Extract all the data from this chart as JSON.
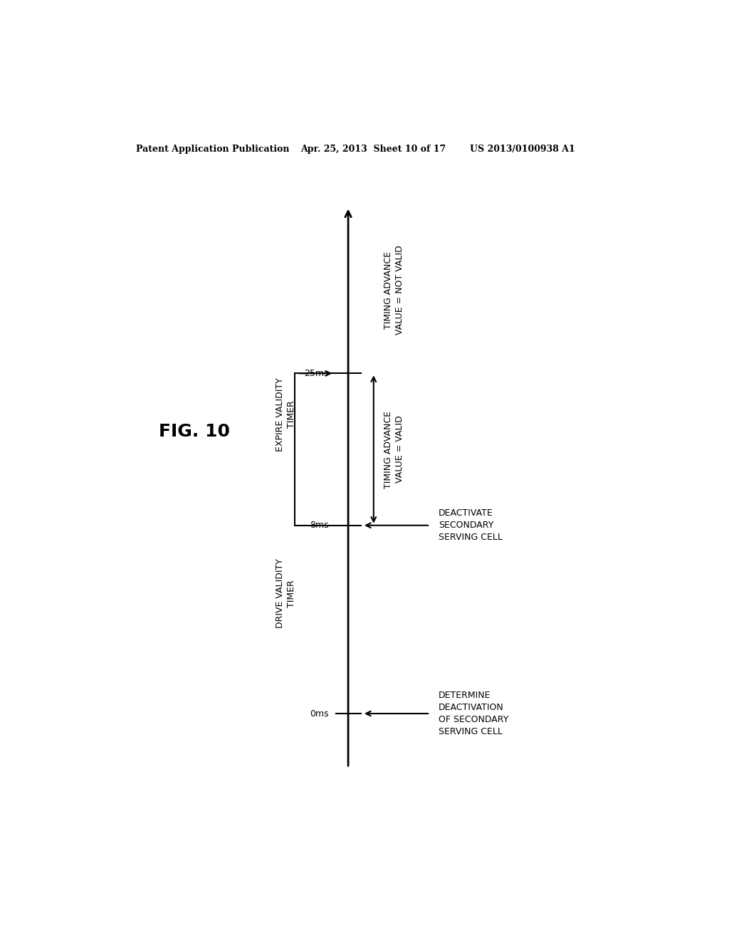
{
  "fig_label": "FIG. 10",
  "header_left": "Patent Application Publication",
  "header_mid": "Apr. 25, 2013  Sheet 10 of 17",
  "header_right": "US 2013/0100938 A1",
  "background_color": "#ffffff",
  "right_arrow_label_0ms": "DETERMINE\nDEACTIVATION\nOF SECONDARY\nSERVING CELL",
  "right_arrow_label_8ms": "DEACTIVATE\nSECONDARY\nSERVING CELL",
  "left_label_8ms": "DRIVE VALIDITY\nTIMER",
  "left_label_25ms": "EXPIRE VALIDITY\nTIMER",
  "ta_valid_label": "TIMING ADVANCE\nVALUE = VALID",
  "ta_not_valid_label": "TIMING ADVANCE\nVALUE = NOT VALID",
  "font_size_labels": 9,
  "font_size_ticks": 9,
  "font_size_header": 9,
  "font_size_fig": 18
}
